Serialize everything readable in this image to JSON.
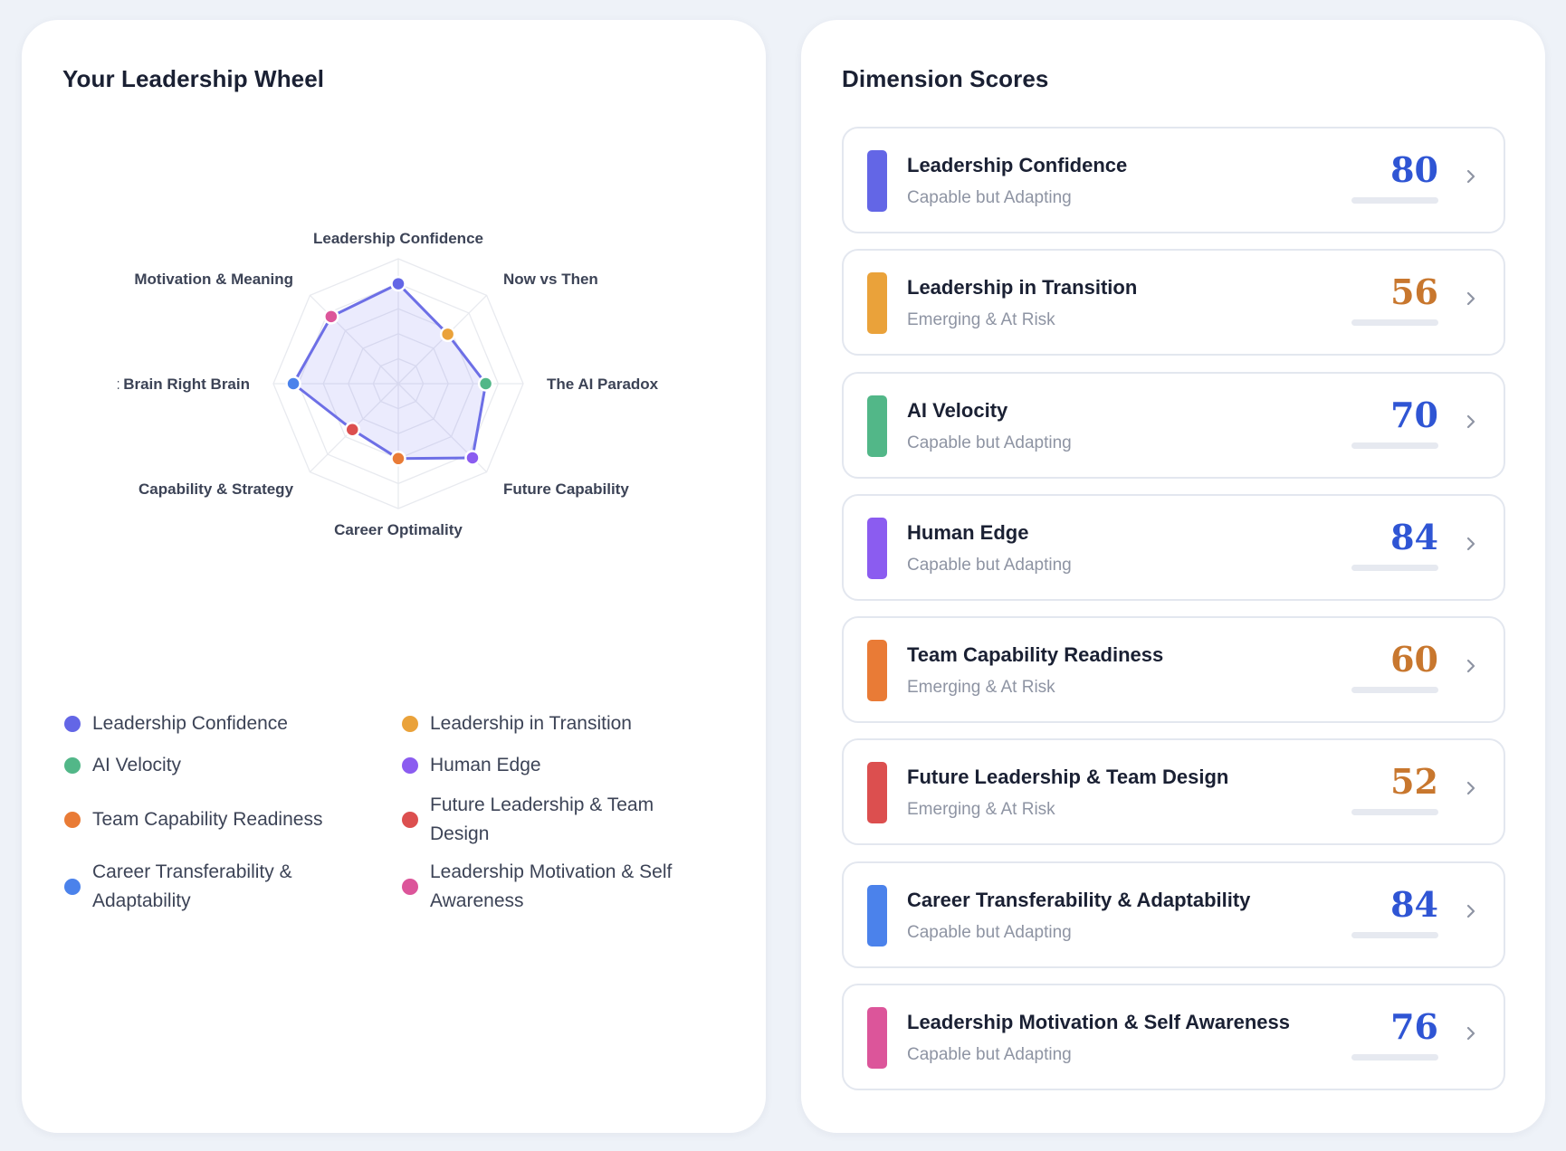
{
  "left_card": {
    "title": "Your Leadership Wheel"
  },
  "right_card": {
    "title": "Dimension Scores"
  },
  "chart_data": {
    "type": "radar",
    "categories": [
      "Leadership Confidence",
      "Now vs Then",
      "The AI Paradox",
      "Future Capability",
      "Career Optimality",
      "Capability & Strategy",
      "Left Brain Right Brain",
      "Motivation & Meaning"
    ],
    "values": [
      80,
      56,
      70,
      84,
      60,
      52,
      84,
      76
    ],
    "point_colors": [
      "#6366e6",
      "#eaa23a",
      "#52b788",
      "#8b5cf0",
      "#e97b36",
      "#dc4f4f",
      "#4b82eb",
      "#dc559a"
    ],
    "range": [
      0,
      100
    ],
    "grid_rings": 5,
    "line_color": "#6d6fe6",
    "fill_color": "#6366f1"
  },
  "legend": [
    {
      "label": "Leadership Confidence",
      "color": "#6366e6"
    },
    {
      "label": "Leadership in Transition",
      "color": "#eaa23a"
    },
    {
      "label": "AI Velocity",
      "color": "#52b788"
    },
    {
      "label": "Human Edge",
      "color": "#8b5cf0"
    },
    {
      "label": "Team Capability Readiness",
      "color": "#e97b36"
    },
    {
      "label": "Future Leadership & Team Design",
      "color": "#dc4f4f"
    },
    {
      "label": "Career Transferability & Adaptability",
      "color": "#4b82eb"
    },
    {
      "label": "Leadership Motivation & Self Awareness",
      "color": "#dc559a"
    }
  ],
  "dimensions": [
    {
      "name": "Leadership Confidence",
      "status": "Capable but Adapting",
      "score": "80",
      "value": 80,
      "bar_color": "#6366e6",
      "score_color": "#2f55d4",
      "progress_color": "#2f55d4",
      "icon": "chevron-right-icon"
    },
    {
      "name": "Leadership in Transition",
      "status": "Emerging & At Risk",
      "score": "56",
      "value": 56,
      "bar_color": "#eaa23a",
      "score_color": "#c8772e",
      "progress_color": "#c8772e",
      "icon": "chevron-right-icon"
    },
    {
      "name": "AI Velocity",
      "status": "Capable but Adapting",
      "score": "70",
      "value": 70,
      "bar_color": "#52b788",
      "score_color": "#2f55d4",
      "progress_color": "#2f55d4",
      "icon": "chevron-right-icon"
    },
    {
      "name": "Human Edge",
      "status": "Capable but Adapting",
      "score": "84",
      "value": 84,
      "bar_color": "#8b5cf0",
      "score_color": "#2f55d4",
      "progress_color": "#2f55d4",
      "icon": "chevron-right-icon"
    },
    {
      "name": "Team Capability Readiness",
      "status": "Emerging & At Risk",
      "score": "60",
      "value": 60,
      "bar_color": "#e97b36",
      "score_color": "#c8772e",
      "progress_color": "#c8772e",
      "icon": "chevron-right-icon"
    },
    {
      "name": "Future Leadership & Team Design",
      "status": "Emerging & At Risk",
      "score": "52",
      "value": 52,
      "bar_color": "#dc4f4f",
      "score_color": "#c8772e",
      "progress_color": "#c8772e",
      "icon": "chevron-right-icon"
    },
    {
      "name": "Career Transferability & Adaptability",
      "status": "Capable but Adapting",
      "score": "84",
      "value": 84,
      "bar_color": "#4b82eb",
      "score_color": "#2f55d4",
      "progress_color": "#2f55d4",
      "icon": "chevron-right-icon"
    },
    {
      "name": "Leadership Motivation & Self Awareness",
      "status": "Capable but Adapting",
      "score": "76",
      "value": 76,
      "bar_color": "#dc559a",
      "score_color": "#2f55d4",
      "progress_color": "#2f55d4",
      "icon": "chevron-right-icon"
    }
  ]
}
